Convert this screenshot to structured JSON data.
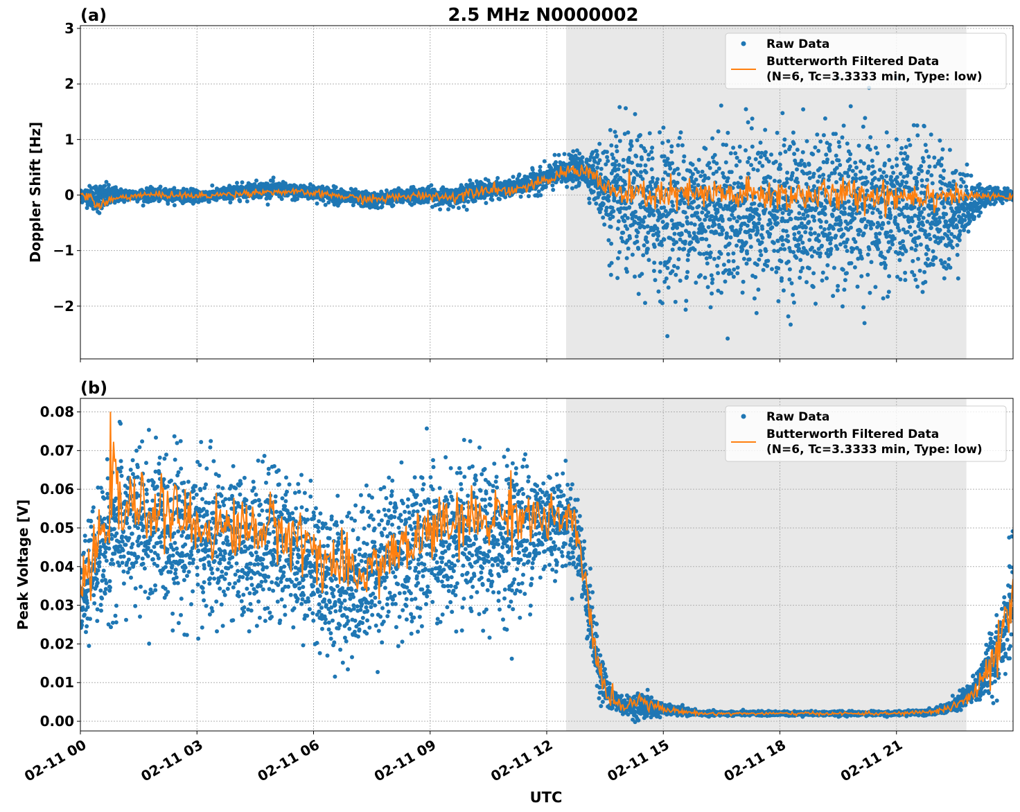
{
  "figure": {
    "title": "2.5 MHz N0000002",
    "xlabel": "UTC"
  },
  "colors": {
    "raw": "#1f77b4",
    "filtered": "#ff7f0e",
    "shade": "#e8e8e8",
    "grid": "#b0b0b0"
  },
  "chart_data": [
    {
      "type": "scatter",
      "panel_label": "(a)",
      "ylabel": "Doppler Shift [Hz]",
      "xlim": [
        0,
        24
      ],
      "ylim": [
        -2.95,
        3.05
      ],
      "x_ticks": [
        0,
        3,
        6,
        9,
        12,
        15,
        18,
        21
      ],
      "x_tick_labels": [],
      "y_ticks": [
        -2,
        -1,
        0,
        1,
        2,
        3
      ],
      "y_tick_labels": [
        "−2",
        "−1",
        "0",
        "1",
        "2",
        "3"
      ],
      "grid": true,
      "shaded_span_hours": [
        12.5,
        22.8
      ],
      "legend_position": "top-right",
      "legend": [
        "Raw Data",
        "Butterworth Filtered Data",
        "(N=6, Tc=3.3333 min, Type: low)"
      ],
      "series": [
        {
          "name": "Raw Data",
          "kind": "scatter",
          "x": [
            0,
            0.5,
            1,
            1.5,
            2,
            2.5,
            3,
            3.5,
            4,
            4.5,
            5,
            5.5,
            6,
            6.5,
            7,
            7.5,
            8,
            8.5,
            9,
            9.5,
            10,
            10.5,
            11,
            11.5,
            12,
            12.5,
            13,
            13.3,
            13.6,
            14,
            15,
            16,
            17,
            18,
            19,
            20,
            21,
            22,
            22.5,
            23,
            23.5,
            24
          ],
          "y_center": [
            0,
            -0.05,
            0,
            0,
            0,
            0,
            -0.02,
            0,
            0.05,
            0.1,
            0.1,
            0.05,
            0.05,
            0,
            -0.05,
            -0.1,
            -0.05,
            0,
            0,
            -0.05,
            0.05,
            0.1,
            0.1,
            0.2,
            0.3,
            0.45,
            0.45,
            0.3,
            0,
            -0.2,
            -0.3,
            -0.3,
            -0.3,
            -0.3,
            -0.3,
            -0.3,
            -0.3,
            -0.3,
            -0.3,
            -0.1,
            0,
            0
          ],
          "y_spread": [
            0.12,
            0.3,
            0.12,
            0.12,
            0.12,
            0.12,
            0.12,
            0.12,
            0.15,
            0.15,
            0.15,
            0.15,
            0.15,
            0.15,
            0.15,
            0.15,
            0.15,
            0.15,
            0.15,
            0.18,
            0.18,
            0.18,
            0.15,
            0.2,
            0.25,
            0.3,
            0.3,
            0.6,
            1.2,
            1.4,
            1.5,
            1.5,
            1.5,
            1.5,
            1.5,
            1.5,
            1.5,
            1.4,
            1.0,
            0.4,
            0.12,
            0.1
          ]
        },
        {
          "name": "Butterworth Filtered Data",
          "kind": "line",
          "x": [
            0,
            0.25,
            0.5,
            0.75,
            1,
            1.5,
            2,
            2.5,
            3,
            3.5,
            4,
            4.5,
            5,
            5.5,
            6,
            6.5,
            7,
            7.5,
            8,
            8.5,
            9,
            9.5,
            10,
            10.5,
            11,
            11.5,
            12,
            12.3,
            12.6,
            12.9,
            13.2,
            13.5,
            14,
            15,
            16,
            17,
            18,
            19,
            20,
            21,
            22,
            22.5,
            23,
            24
          ],
          "y": [
            0,
            -0.05,
            -0.2,
            -0.1,
            -0.05,
            0,
            0,
            0,
            -0.02,
            0,
            0.02,
            0.05,
            0.06,
            0.05,
            0.03,
            0,
            -0.05,
            -0.08,
            -0.05,
            -0.02,
            0,
            -0.05,
            0.05,
            0.12,
            0.08,
            0.15,
            0.25,
            0.35,
            0.45,
            0.45,
            0.4,
            0.1,
            0,
            0,
            0,
            0,
            0,
            0,
            0,
            0,
            0,
            0,
            -0.02,
            -0.03
          ],
          "noise": [
            0.02,
            0.05,
            0.08,
            0.05,
            0.03,
            0.03,
            0.03,
            0.03,
            0.03,
            0.03,
            0.03,
            0.03,
            0.03,
            0.03,
            0.03,
            0.03,
            0.04,
            0.04,
            0.04,
            0.04,
            0.04,
            0.05,
            0.05,
            0.05,
            0.05,
            0.05,
            0.05,
            0.06,
            0.06,
            0.06,
            0.08,
            0.12,
            0.14,
            0.15,
            0.15,
            0.15,
            0.15,
            0.15,
            0.15,
            0.15,
            0.14,
            0.08,
            0.03,
            0.02
          ]
        }
      ]
    },
    {
      "type": "scatter",
      "panel_label": "(b)",
      "ylabel": "Peak Voltage [V]",
      "xlim": [
        0,
        24
      ],
      "ylim": [
        -0.0025,
        0.0835
      ],
      "x_ticks": [
        0,
        3,
        6,
        9,
        12,
        15,
        18,
        21
      ],
      "x_tick_labels": [
        "02-11 00",
        "02-11 03",
        "02-11 06",
        "02-11 09",
        "02-11 12",
        "02-11 15",
        "02-11 18",
        "02-11 21"
      ],
      "y_ticks": [
        0,
        0.01,
        0.02,
        0.03,
        0.04,
        0.05,
        0.06,
        0.07,
        0.08
      ],
      "y_tick_labels": [
        "0.00",
        "0.01",
        "0.02",
        "0.03",
        "0.04",
        "0.05",
        "0.06",
        "0.07",
        "0.08"
      ],
      "grid": true,
      "shaded_span_hours": [
        12.5,
        22.8
      ],
      "legend_position": "top-right",
      "legend": [
        "Raw Data",
        "Butterworth Filtered Data",
        "(N=6, Tc=3.3333 min, Type: low)"
      ],
      "series": [
        {
          "name": "Raw Data",
          "kind": "scatter",
          "x": [
            0,
            0.3,
            0.6,
            1,
            1.5,
            2,
            2.5,
            3,
            3.5,
            4,
            4.5,
            5,
            5.5,
            6,
            6.5,
            7,
            7.5,
            8,
            8.5,
            9,
            9.5,
            10,
            10.5,
            11,
            11.5,
            12,
            12.5,
            12.8,
            13,
            13.3,
            13.6,
            14,
            14.5,
            15,
            16,
            17,
            18,
            19,
            20,
            21,
            22,
            22.5,
            23,
            23.5,
            24
          ],
          "y_center": [
            0.03,
            0.04,
            0.045,
            0.05,
            0.05,
            0.05,
            0.05,
            0.048,
            0.046,
            0.045,
            0.045,
            0.046,
            0.045,
            0.04,
            0.036,
            0.036,
            0.04,
            0.043,
            0.044,
            0.046,
            0.045,
            0.046,
            0.046,
            0.048,
            0.05,
            0.052,
            0.052,
            0.048,
            0.035,
            0.015,
            0.006,
            0.004,
            0.004,
            0.003,
            0.002,
            0.002,
            0.002,
            0.002,
            0.002,
            0.002,
            0.0025,
            0.004,
            0.008,
            0.016,
            0.032
          ],
          "y_spread": [
            0.012,
            0.015,
            0.02,
            0.022,
            0.022,
            0.022,
            0.022,
            0.021,
            0.021,
            0.02,
            0.02,
            0.02,
            0.02,
            0.02,
            0.02,
            0.02,
            0.021,
            0.022,
            0.022,
            0.022,
            0.021,
            0.021,
            0.021,
            0.022,
            0.02,
            0.015,
            0.012,
            0.012,
            0.012,
            0.008,
            0.004,
            0.002,
            0.004,
            0.0015,
            0.0006,
            0.0006,
            0.0006,
            0.0006,
            0.0006,
            0.0006,
            0.0008,
            0.002,
            0.004,
            0.01,
            0.015
          ]
        },
        {
          "name": "Butterworth Filtered Data",
          "kind": "line",
          "x": [
            0,
            0.3,
            0.6,
            0.8,
            1,
            1.5,
            2,
            2.5,
            3,
            3.5,
            4,
            4.5,
            5,
            5.5,
            6,
            6.3,
            6.6,
            7,
            7.5,
            8,
            8.5,
            9,
            9.5,
            10,
            10.5,
            11,
            11.5,
            12,
            12.5,
            12.8,
            13,
            13.3,
            13.6,
            14,
            14.5,
            15,
            16,
            17,
            18,
            19,
            20,
            21,
            22,
            22.5,
            23,
            23.5,
            24
          ],
          "y": [
            0.035,
            0.04,
            0.05,
            0.063,
            0.055,
            0.055,
            0.055,
            0.053,
            0.05,
            0.05,
            0.05,
            0.05,
            0.05,
            0.048,
            0.045,
            0.042,
            0.04,
            0.037,
            0.04,
            0.043,
            0.045,
            0.05,
            0.05,
            0.052,
            0.052,
            0.055,
            0.053,
            0.052,
            0.052,
            0.048,
            0.035,
            0.015,
            0.006,
            0.004,
            0.006,
            0.003,
            0.002,
            0.002,
            0.002,
            0.002,
            0.002,
            0.002,
            0.0025,
            0.004,
            0.007,
            0.015,
            0.03
          ],
          "noise": [
            0.003,
            0.004,
            0.005,
            0.006,
            0.005,
            0.004,
            0.004,
            0.004,
            0.004,
            0.004,
            0.004,
            0.004,
            0.004,
            0.004,
            0.004,
            0.004,
            0.004,
            0.004,
            0.004,
            0.004,
            0.004,
            0.004,
            0.004,
            0.004,
            0.004,
            0.004,
            0.004,
            0.003,
            0.003,
            0.003,
            0.003,
            0.002,
            0.001,
            0.001,
            0.0012,
            0.0004,
            0.0002,
            0.0002,
            0.0002,
            0.0002,
            0.0002,
            0.0002,
            0.0003,
            0.0008,
            0.0015,
            0.003,
            0.004
          ]
        }
      ]
    }
  ]
}
